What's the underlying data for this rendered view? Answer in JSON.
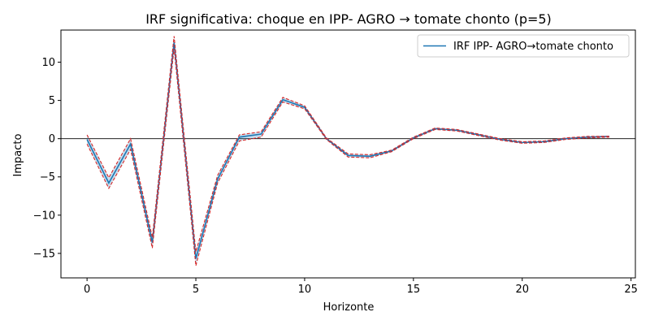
{
  "chart_data": {
    "type": "line",
    "title": "IRF significativa: choque en IPP- AGRO → tomate chonto (p=5)",
    "xlabel": "Horizonte",
    "ylabel": "Impacto",
    "xlim": [
      -1.2,
      25.2
    ],
    "ylim": [
      -18.2,
      14.2
    ],
    "xticks": [
      0,
      5,
      10,
      15,
      20,
      25
    ],
    "yticks": [
      -15,
      -10,
      -5,
      0,
      5,
      10
    ],
    "legend_position": "top-right",
    "zero_line": true,
    "x": [
      0,
      1,
      2,
      3,
      4,
      5,
      6,
      7,
      8,
      9,
      10,
      11,
      12,
      13,
      14,
      15,
      16,
      17,
      18,
      19,
      20,
      21,
      22,
      23,
      24
    ],
    "series": [
      {
        "name": "IRF IPP- AGRO→tomate chonto",
        "role": "irf",
        "color": "#1f77b4",
        "values": [
          -0.1,
          -5.8,
          -0.7,
          -13.6,
          12.6,
          -15.7,
          -5.3,
          0.2,
          0.6,
          5.1,
          4.1,
          0.0,
          -2.2,
          -2.3,
          -1.6,
          0.1,
          1.3,
          1.1,
          0.5,
          -0.1,
          -0.5,
          -0.4,
          0.0,
          0.2,
          0.3
        ]
      },
      {
        "role": "upper",
        "color": "#d62728",
        "values": [
          0.5,
          -5.1,
          0.0,
          -12.9,
          13.4,
          -14.8,
          -4.8,
          0.5,
          0.9,
          5.4,
          4.3,
          0.1,
          -2.0,
          -2.1,
          -1.5,
          0.2,
          1.4,
          1.2,
          0.6,
          0.0,
          -0.4,
          -0.3,
          0.1,
          0.3,
          0.3
        ]
      },
      {
        "role": "lower",
        "color": "#d62728",
        "values": [
          -0.7,
          -6.5,
          -1.4,
          -14.3,
          11.8,
          -16.6,
          -5.8,
          -0.3,
          0.2,
          4.8,
          3.9,
          -0.1,
          -2.4,
          -2.5,
          -1.7,
          0.0,
          1.2,
          1.0,
          0.4,
          -0.2,
          -0.6,
          -0.5,
          -0.1,
          0.1,
          0.2
        ]
      }
    ]
  }
}
